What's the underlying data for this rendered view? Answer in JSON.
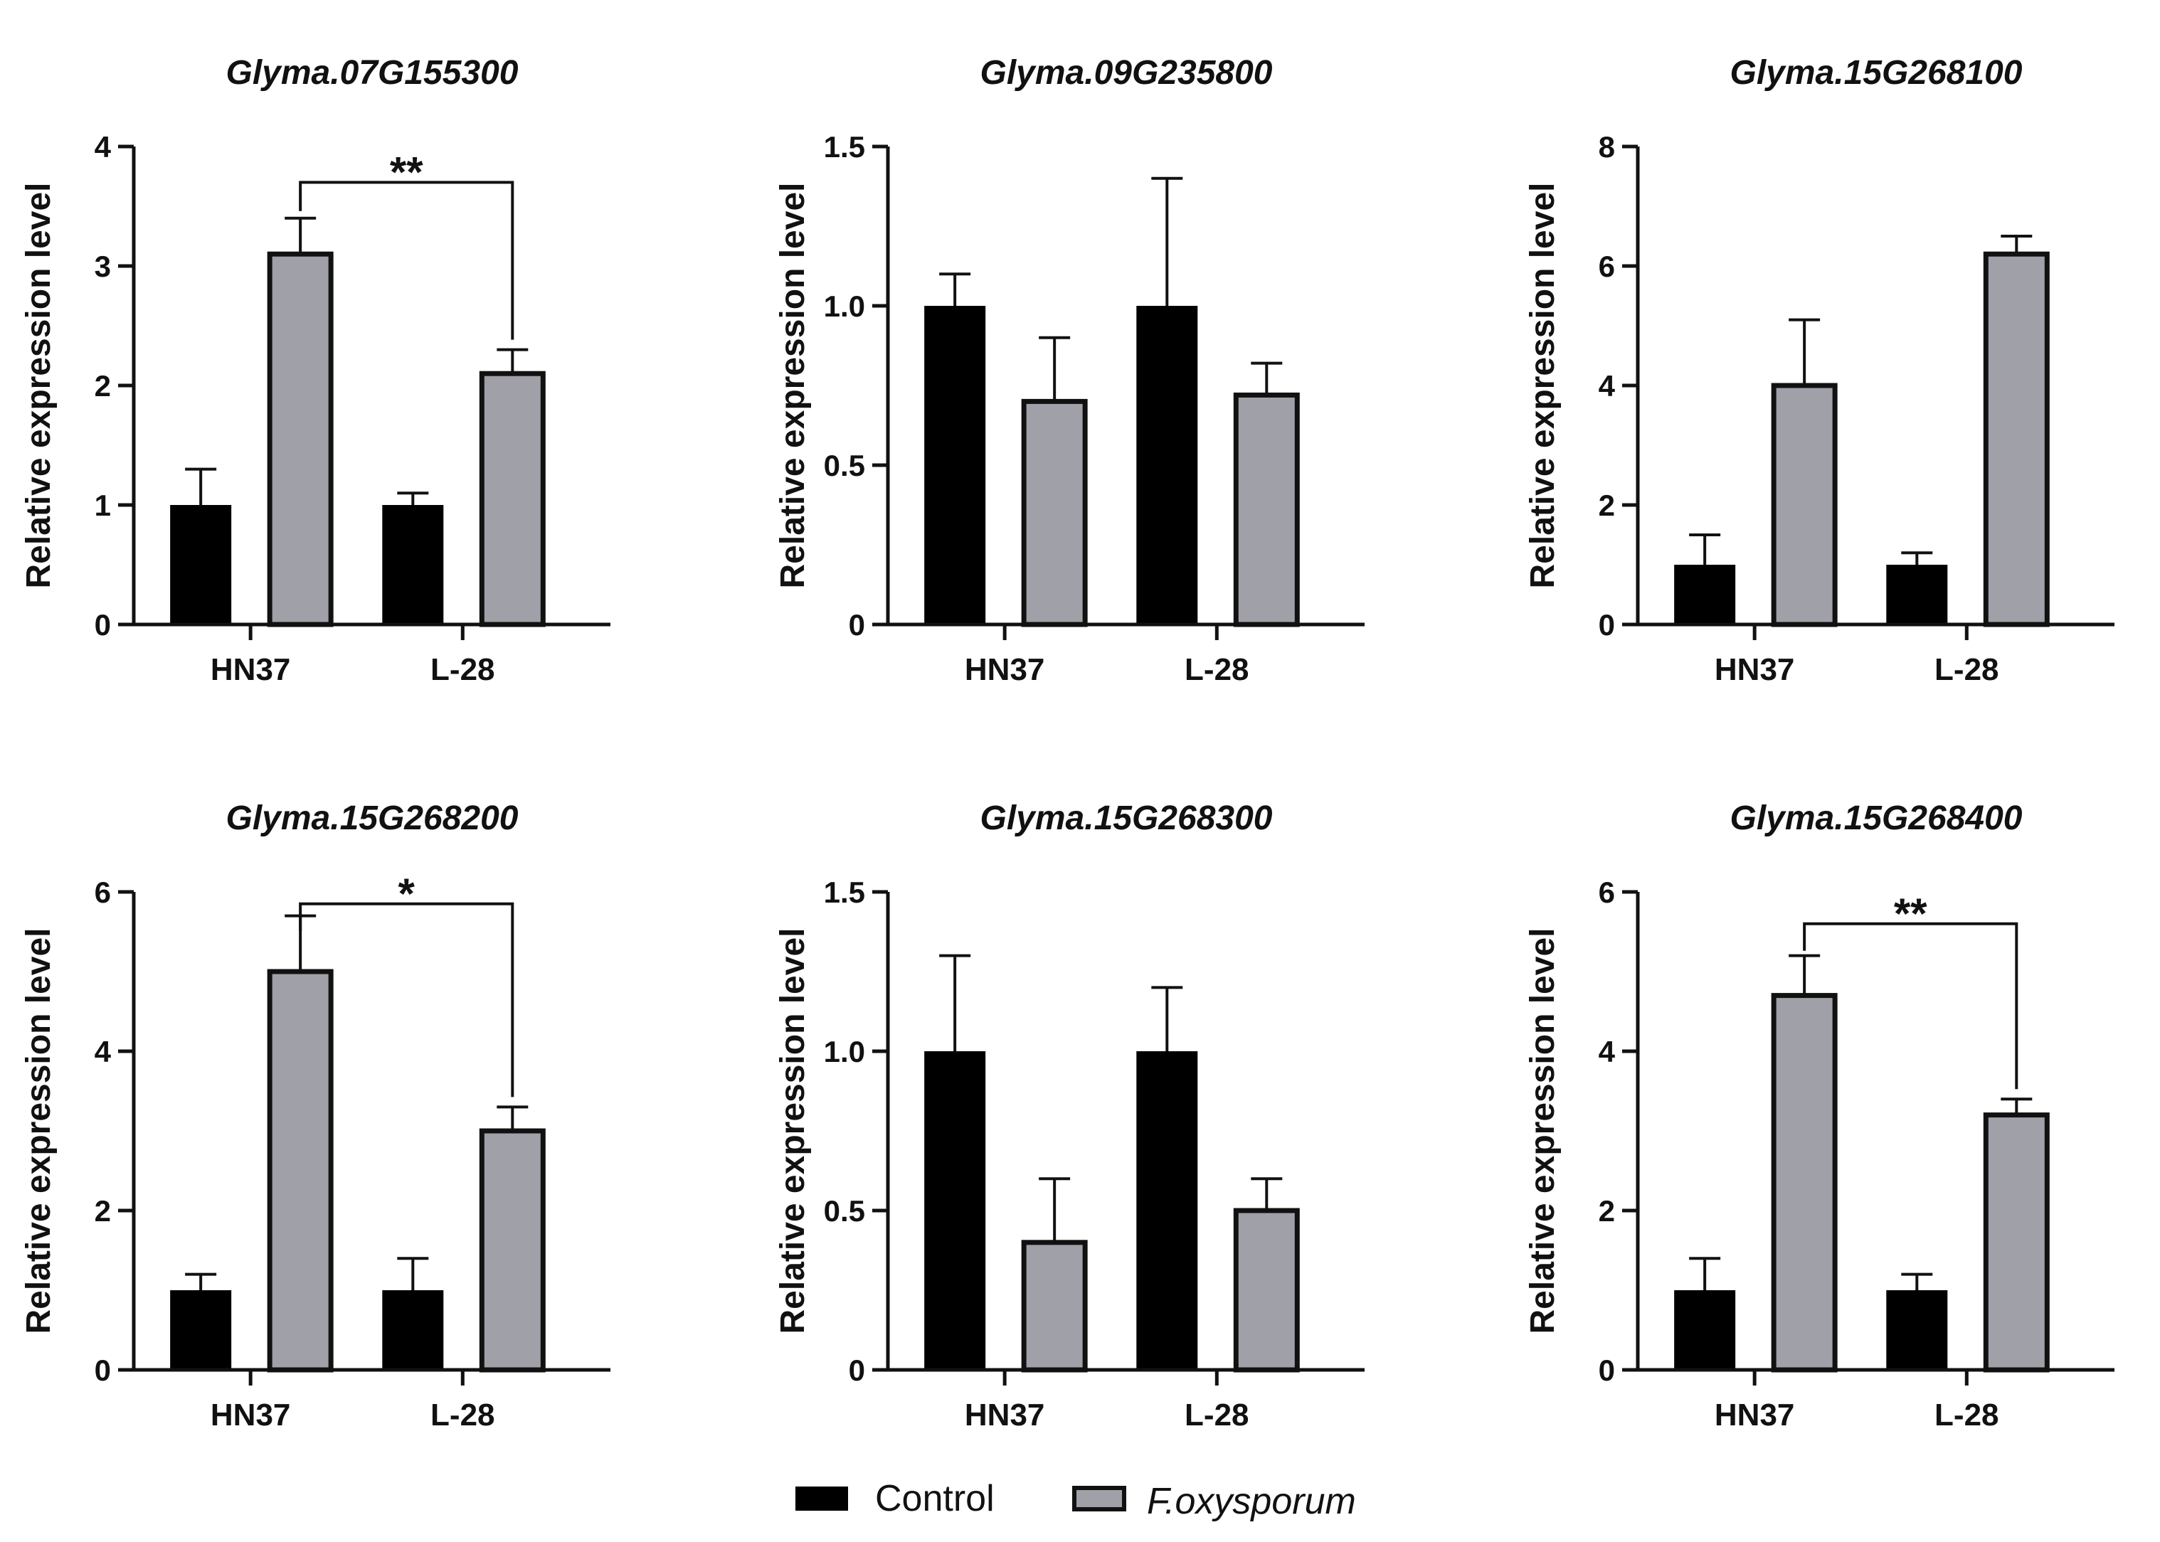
{
  "chart_data": [
    {
      "type": "bar",
      "title": "Glyma.07G155300",
      "ylabel": "Relative expression level",
      "categories": [
        "HN37",
        "L-28"
      ],
      "ylim": [
        0,
        4
      ],
      "yticks": [
        "0",
        "1",
        "2",
        "3",
        "4"
      ],
      "series": [
        {
          "name": "Control",
          "values": [
            1.0,
            1.0
          ],
          "errors": [
            0.3,
            0.1
          ]
        },
        {
          "name": "F.oxysporum",
          "values": [
            3.1,
            2.1
          ],
          "errors": [
            0.3,
            0.2
          ]
        }
      ],
      "significance": {
        "label": "**",
        "from": "HN37",
        "to": "L-28",
        "series": "F.oxysporum",
        "y": 3.7
      }
    },
    {
      "type": "bar",
      "title": "Glyma.09G235800",
      "ylabel": "Relative expression level",
      "categories": [
        "HN37",
        "L-28"
      ],
      "ylim": [
        0,
        1.5
      ],
      "yticks": [
        "0",
        "0.5",
        "1.0",
        "1.5"
      ],
      "series": [
        {
          "name": "Control",
          "values": [
            1.0,
            1.0
          ],
          "errors": [
            0.1,
            0.4
          ]
        },
        {
          "name": "F.oxysporum",
          "values": [
            0.7,
            0.72
          ],
          "errors": [
            0.2,
            0.1
          ]
        }
      ]
    },
    {
      "type": "bar",
      "title": "Glyma.15G268100",
      "ylabel": "Relative expression level",
      "categories": [
        "HN37",
        "L-28"
      ],
      "ylim": [
        0,
        8
      ],
      "yticks": [
        "0",
        "2",
        "4",
        "6",
        "8"
      ],
      "series": [
        {
          "name": "Control",
          "values": [
            1.0,
            1.0
          ],
          "errors": [
            0.5,
            0.2
          ]
        },
        {
          "name": "F.oxysporum",
          "values": [
            4.0,
            6.2
          ],
          "errors": [
            1.1,
            0.3
          ]
        }
      ]
    },
    {
      "type": "bar",
      "title": "Glyma.15G268200",
      "ylabel": "Relative expression level",
      "categories": [
        "HN37",
        "L-28"
      ],
      "ylim": [
        0,
        6
      ],
      "yticks": [
        "0",
        "2",
        "4",
        "6"
      ],
      "series": [
        {
          "name": "Control",
          "values": [
            1.0,
            1.0
          ],
          "errors": [
            0.2,
            0.4
          ]
        },
        {
          "name": "F.oxysporum",
          "values": [
            5.0,
            3.0
          ],
          "errors": [
            0.7,
            0.3
          ]
        }
      ],
      "significance": {
        "label": "*",
        "from": "HN37",
        "to": "L-28",
        "series": "F.oxysporum",
        "y": 5.85
      }
    },
    {
      "type": "bar",
      "title": "Glyma.15G268300",
      "ylabel": "Relative expression level",
      "categories": [
        "HN37",
        "L-28"
      ],
      "ylim": [
        0,
        1.5
      ],
      "yticks": [
        "0",
        "0.5",
        "1.0",
        "1.5"
      ],
      "series": [
        {
          "name": "Control",
          "values": [
            1.0,
            1.0
          ],
          "errors": [
            0.3,
            0.2
          ]
        },
        {
          "name": "F.oxysporum",
          "values": [
            0.4,
            0.5
          ],
          "errors": [
            0.2,
            0.1
          ]
        }
      ]
    },
    {
      "type": "bar",
      "title": "Glyma.15G268400",
      "ylabel": "Relative expression level",
      "categories": [
        "HN37",
        "L-28"
      ],
      "ylim": [
        0,
        6
      ],
      "yticks": [
        "0",
        "2",
        "4",
        "6"
      ],
      "series": [
        {
          "name": "Control",
          "values": [
            1.0,
            1.0
          ],
          "errors": [
            0.4,
            0.2
          ]
        },
        {
          "name": "F.oxysporum",
          "values": [
            4.7,
            3.2
          ],
          "errors": [
            0.5,
            0.2
          ]
        }
      ],
      "significance": {
        "label": "**",
        "from": "HN37",
        "to": "L-28",
        "series": "F.oxysporum",
        "y": 5.6
      }
    }
  ],
  "legend": {
    "placement": "bottom-center",
    "items": [
      {
        "label": "Control",
        "color": "#000000",
        "italic": false
      },
      {
        "label": "F.oxysporum",
        "color": "#a0a0a8",
        "italic": true
      }
    ]
  },
  "colors": {
    "control": "#000000",
    "treatment": "#a0a0a8",
    "axis": "#111111"
  }
}
